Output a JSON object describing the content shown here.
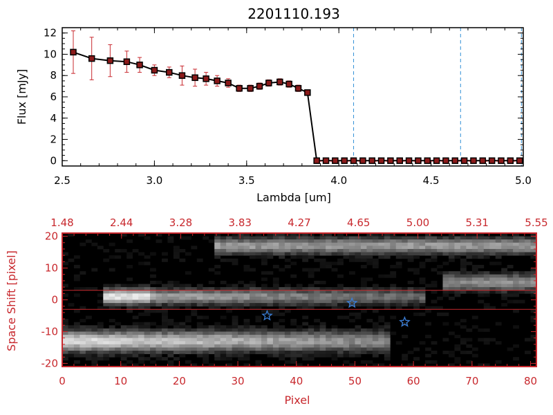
{
  "colors": {
    "black": "#000000",
    "red": "#c8282d",
    "marker_fill": "#8b1a1a",
    "errorbar": "#c8282d",
    "dashed_line": "#2f8fd6",
    "star": "#3b7fd8"
  },
  "chart_data": [
    {
      "type": "line",
      "title": "2201110.193",
      "xlabel": "Lambda [um]",
      "ylabel": "Flux [mJy]",
      "xlim": [
        2.5,
        5.0
      ],
      "ylim": [
        -0.5,
        12.5
      ],
      "xticks": [
        "2.5",
        "3.0",
        "3.5",
        "4.0",
        "4.5",
        "5.0"
      ],
      "xtick_values": [
        2.5,
        3.0,
        3.5,
        4.0,
        4.5,
        5.0
      ],
      "yticks": [
        "0",
        "2",
        "4",
        "6",
        "8",
        "10",
        "12"
      ],
      "ytick_values": [
        0,
        2,
        4,
        6,
        8,
        10,
        12
      ],
      "grid": false,
      "vertical_dashed_lines": [
        4.08,
        4.66,
        4.99
      ],
      "series": [
        {
          "x": [
            2.56,
            2.66,
            2.76,
            2.85,
            2.92,
            3.0,
            3.08,
            3.15,
            3.22,
            3.28,
            3.34,
            3.4,
            3.46,
            3.52,
            3.57,
            3.62,
            3.68,
            3.73,
            3.78,
            3.83,
            3.88,
            3.93,
            3.98,
            4.03,
            4.08,
            4.13,
            4.18,
            4.23,
            4.28,
            4.33,
            4.38,
            4.43,
            4.48,
            4.53,
            4.58,
            4.63,
            4.68,
            4.73,
            4.78,
            4.83,
            4.88,
            4.93,
            4.98
          ],
          "y": [
            10.2,
            9.6,
            9.4,
            9.3,
            9.0,
            8.5,
            8.3,
            8.0,
            7.8,
            7.7,
            7.5,
            7.3,
            6.8,
            6.8,
            7.0,
            7.3,
            7.4,
            7.2,
            6.8,
            6.4,
            0,
            0,
            0,
            0,
            0,
            0,
            0,
            0,
            0,
            0,
            0,
            0,
            0,
            0,
            0,
            0,
            0,
            0,
            0,
            0,
            0,
            0,
            0
          ],
          "yerr": [
            2.0,
            2.0,
            1.5,
            1.0,
            0.7,
            0.5,
            0.5,
            0.9,
            0.8,
            0.6,
            0.5,
            0.4,
            0.3,
            0.3,
            0.3,
            0.3,
            0.3,
            0.3,
            0.3,
            0.2,
            0,
            0,
            0,
            0,
            0,
            0,
            0,
            0,
            0,
            0,
            0,
            0,
            0,
            0,
            0,
            0,
            0,
            0,
            0,
            0,
            0,
            0,
            0
          ]
        }
      ]
    },
    {
      "type": "heatmap",
      "xlabel": "Pixel",
      "ylabel": "Space Shift [pixel]",
      "xlim": [
        0,
        81
      ],
      "ylim": [
        -21,
        21
      ],
      "xticks": [
        "0",
        "10",
        "20",
        "30",
        "40",
        "50",
        "60",
        "70",
        "80"
      ],
      "xtick_values": [
        0,
        10,
        20,
        30,
        40,
        50,
        60,
        70,
        80
      ],
      "yticks": [
        "-20",
        "-10",
        "0",
        "10",
        "20"
      ],
      "ytick_values": [
        -20,
        -10,
        0,
        10,
        20
      ],
      "top_axis_ticks": [
        "1.48",
        "2.44",
        "3.28",
        "3.83",
        "4.27",
        "4.65",
        "5.00",
        "5.31",
        "5.55"
      ],
      "horizontal_lines": [
        3,
        -3
      ],
      "stars": [
        {
          "x": 35,
          "y": -5
        },
        {
          "x": 49.5,
          "y": -1
        },
        {
          "x": 58.5,
          "y": -7
        }
      ]
    }
  ]
}
